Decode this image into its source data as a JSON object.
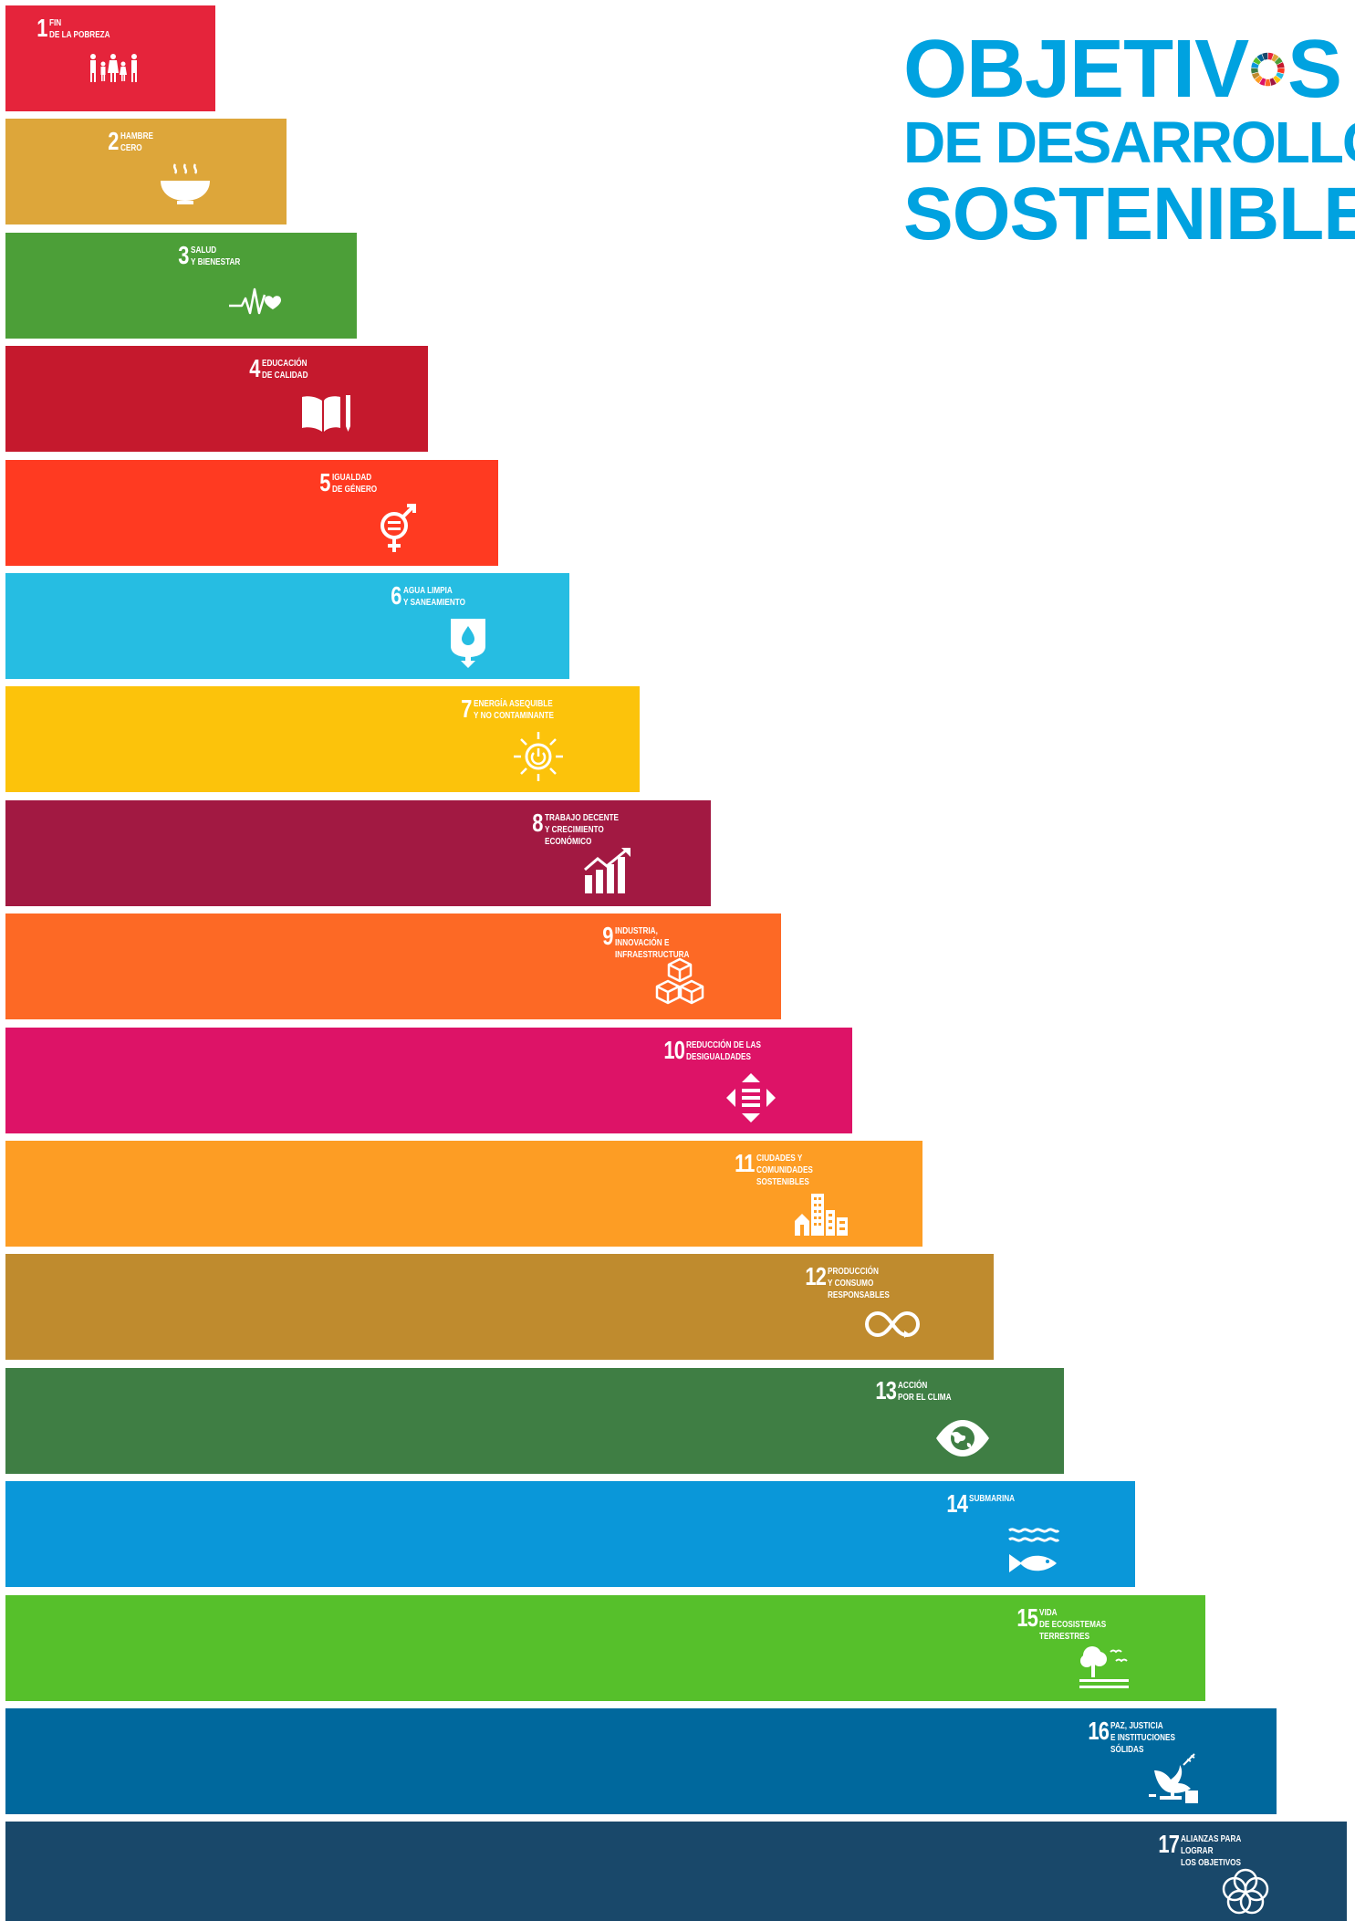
{
  "title": {
    "line1_a": "OBJETIV",
    "line1_b": "S",
    "line2": "DE DESARROLLO",
    "line3": "SOSTENIBLE",
    "brand_color": "#00a2e0"
  },
  "goals": [
    {
      "num": "1",
      "label": "FIN\nDE LA POBREZA",
      "color": "#e5243b",
      "icon": "family-icon"
    },
    {
      "num": "2",
      "label": "HAMBRE\nCERO",
      "color": "#dda63a",
      "icon": "food-bowl-icon"
    },
    {
      "num": "3",
      "label": "SALUD\nY BIENESTAR",
      "color": "#4c9f38",
      "icon": "heartbeat-icon"
    },
    {
      "num": "4",
      "label": "EDUCACIÓN\nDE CALIDAD",
      "color": "#c5192d",
      "icon": "book-pencil-icon"
    },
    {
      "num": "5",
      "label": "IGUALDAD\nDE GÉNERO",
      "color": "#ff3a21",
      "icon": "gender-equality-icon"
    },
    {
      "num": "6",
      "label": "AGUA LIMPIA\nY SANEAMIENTO",
      "color": "#26bde2",
      "icon": "water-drop-icon"
    },
    {
      "num": "7",
      "label": "ENERGÍA ASEQUIBLE\nY NO CONTAMINANTE",
      "color": "#fcc30b",
      "icon": "sun-power-icon"
    },
    {
      "num": "8",
      "label": "TRABAJO DECENTE\nY CRECIMIENTO\nECONÓMICO",
      "color": "#a21942",
      "icon": "growth-chart-icon"
    },
    {
      "num": "9",
      "label": "INDUSTRIA,\nINNOVACIÓN E\nINFRAESTRUCTURA",
      "color": "#fd6925",
      "icon": "cubes-icon"
    },
    {
      "num": "10",
      "label": "REDUCCIÓN DE LAS\nDESIGUALDADES",
      "color": "#dd1367",
      "icon": "equality-arrows-icon"
    },
    {
      "num": "11",
      "label": "CIUDADES Y\nCOMUNIDADES\nSOSTENIBLES",
      "color": "#fd9d24",
      "icon": "city-buildings-icon"
    },
    {
      "num": "12",
      "label": "PRODUCCIÓN\nY CONSUMO\nRESPONSABLES",
      "color": "#bf8b2e",
      "icon": "infinity-icon"
    },
    {
      "num": "13",
      "label": "ACCIÓN\nPOR EL CLIMA",
      "color": "#3f7e44",
      "icon": "eye-globe-icon"
    },
    {
      "num": "14",
      "label": "SUBMARINA",
      "color": "#0a97d9",
      "icon": "fish-waves-icon"
    },
    {
      "num": "15",
      "label": "VIDA\nDE ECOSISTEMAS\nTERRESTRES",
      "color": "#56c02b",
      "icon": "tree-birds-icon"
    },
    {
      "num": "16",
      "label": "PAZ, JUSTICIA\nE INSTITUCIONES\nSÓLIDAS",
      "color": "#00689d",
      "icon": "dove-gavel-icon"
    },
    {
      "num": "17",
      "label": "ALIANZAS PARA\nLOGRAR\nLOS OBJETIVOS",
      "color": "#19486a",
      "icon": "flower-rings-icon"
    }
  ]
}
